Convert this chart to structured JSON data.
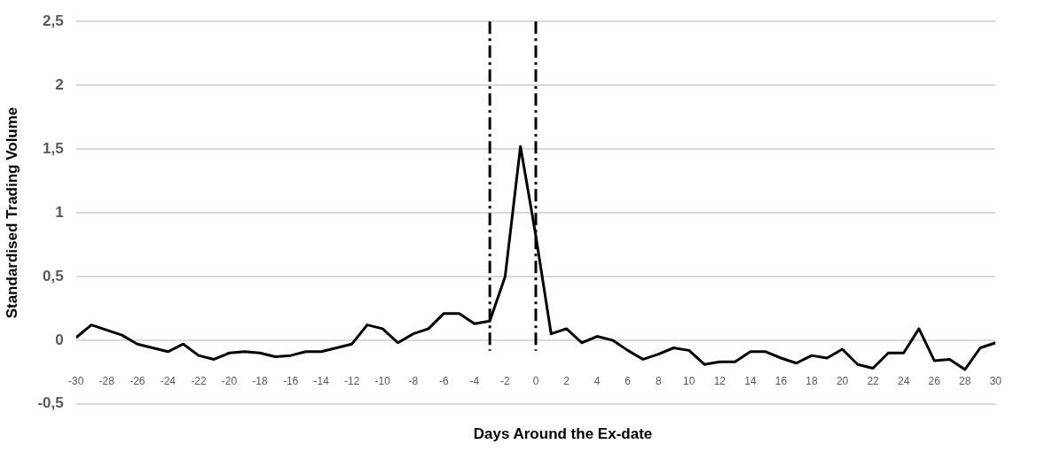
{
  "chart_data": {
    "type": "line",
    "xlabel": "Days Around the Ex-date",
    "ylabel": "Standardised Trading Volume",
    "x": [
      -30,
      -29,
      -28,
      -27,
      -26,
      -25,
      -24,
      -23,
      -22,
      -21,
      -20,
      -19,
      -18,
      -17,
      -16,
      -15,
      -14,
      -13,
      -12,
      -11,
      -10,
      -9,
      -8,
      -7,
      -6,
      -5,
      -4,
      -3,
      -2,
      -1,
      0,
      1,
      2,
      3,
      4,
      5,
      6,
      7,
      8,
      9,
      10,
      11,
      12,
      13,
      14,
      15,
      16,
      17,
      18,
      19,
      20,
      21,
      22,
      23,
      24,
      25,
      26,
      27,
      28,
      29,
      30
    ],
    "series": [
      {
        "color": "#000000",
        "values": [
          0.02,
          0.12,
          0.08,
          0.04,
          -0.03,
          -0.06,
          -0.09,
          -0.03,
          -0.12,
          -0.15,
          -0.1,
          -0.09,
          -0.1,
          -0.13,
          -0.12,
          -0.09,
          -0.09,
          -0.06,
          -0.03,
          0.12,
          0.09,
          -0.02,
          0.05,
          0.09,
          0.21,
          0.21,
          0.13,
          0.15,
          0.5,
          1.52,
          0.82,
          0.05,
          0.09,
          -0.02,
          0.03,
          0.0,
          -0.08,
          -0.15,
          -0.11,
          -0.06,
          -0.08,
          -0.19,
          -0.17,
          -0.17,
          -0.09,
          -0.09,
          -0.14,
          -0.18,
          -0.12,
          -0.14,
          -0.07,
          -0.19,
          -0.22,
          -0.1,
          -0.1,
          0.09,
          -0.16,
          -0.15,
          -0.23,
          -0.06,
          -0.02
        ]
      }
    ],
    "xlim": [
      -30,
      30
    ],
    "xticks": [
      -30,
      -28,
      -26,
      -24,
      -22,
      -20,
      -18,
      -16,
      -14,
      -12,
      -10,
      -8,
      -6,
      -4,
      -2,
      0,
      2,
      4,
      6,
      8,
      10,
      12,
      14,
      16,
      18,
      20,
      22,
      24,
      26,
      28,
      30
    ],
    "ylim": [
      -0.5,
      2.5
    ],
    "yticks": [
      {
        "value": -0.5,
        "label": "-0,5"
      },
      0,
      {
        "value": 0.5,
        "label": "0,5"
      },
      1,
      {
        "value": 1.5,
        "label": "1,5"
      },
      2,
      {
        "value": 2.5,
        "label": "2,5"
      }
    ],
    "ref_lines": [
      {
        "axis": "x",
        "value": -3,
        "color": "#000000",
        "line_style": "dashed"
      },
      {
        "axis": "x",
        "value": 0,
        "color": "#000000",
        "line_style": "dashed"
      }
    ],
    "grid": "y",
    "legend": false,
    "marker": "none",
    "line_style": "solid"
  }
}
